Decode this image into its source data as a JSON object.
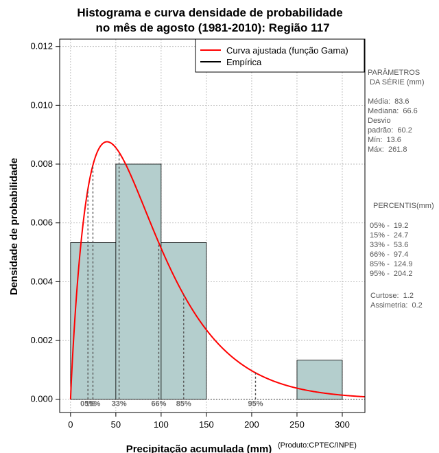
{
  "chart_data": {
    "type": "bar",
    "title_lines": [
      "Histograma e curva densidade de probabilidade",
      "no mês de agosto (1981-2010): Região 117"
    ],
    "xlabel": "Precipitação acumulada (mm)",
    "ylabel": "Densidade de probabilidade",
    "credit": "(Produto:CPTEC/INPE)",
    "xlim": [
      -12,
      325
    ],
    "ylim": [
      -0.00045,
      0.01225
    ],
    "xticks": [
      0,
      50,
      100,
      150,
      200,
      250,
      300
    ],
    "yticks": [
      0.0,
      0.002,
      0.004,
      0.006,
      0.008,
      0.01,
      0.012
    ],
    "ytick_labels": [
      "0.000",
      "0.002",
      "0.004",
      "0.006",
      "0.008",
      "0.010",
      "0.012"
    ],
    "grid": true,
    "bins": [
      {
        "from": 0,
        "to": 50,
        "density": 0.00533
      },
      {
        "from": 50,
        "to": 100,
        "density": 0.008
      },
      {
        "from": 100,
        "to": 150,
        "density": 0.00533
      },
      {
        "from": 150,
        "to": 200,
        "density": 0
      },
      {
        "from": 200,
        "to": 250,
        "density": 0
      },
      {
        "from": 250,
        "to": 300,
        "density": 0.00133
      }
    ],
    "bar_color": "#b4cecd",
    "curve": {
      "name": "Curva ajustada (função Gama)",
      "color": "#ff0000",
      "gamma_shape": 1.93,
      "gamma_scale": 43.3
    },
    "legend": {
      "position": "top-right",
      "entries": [
        {
          "label": "Curva ajustada (função Gama)",
          "color": "#ff0000"
        },
        {
          "label": "Empírica",
          "color": "#000000"
        }
      ]
    },
    "percentile_markers": [
      {
        "x": 19.2,
        "label": "05%"
      },
      {
        "x": 24.7,
        "label": "15%"
      },
      {
        "x": 53.6,
        "label": "33%"
      },
      {
        "x": 97.4,
        "label": "66%"
      },
      {
        "x": 124.9,
        "label": "85%"
      },
      {
        "x": 204.2,
        "label": "95%"
      }
    ]
  },
  "side_panel": {
    "stats_heading": [
      "PARÂMETROS",
      " DA SÉRIE (mm)"
    ],
    "stats": [
      "Média:  83.6",
      "Mediana:  66.6",
      "Desvio",
      "padrão:  60.2",
      "Mín:  13.6",
      "Máx:  261.8"
    ],
    "percentile_heading": "PERCENTIS(mm)",
    "percentiles": [
      " 05% -  19.2",
      " 15% -  24.7",
      " 33% -  53.6",
      " 66% -  97.4",
      " 85% -  124.9",
      " 95% -  204.2"
    ],
    "shape": [
      "Curtose:  1.2",
      "Assimetria:  0.2"
    ]
  }
}
